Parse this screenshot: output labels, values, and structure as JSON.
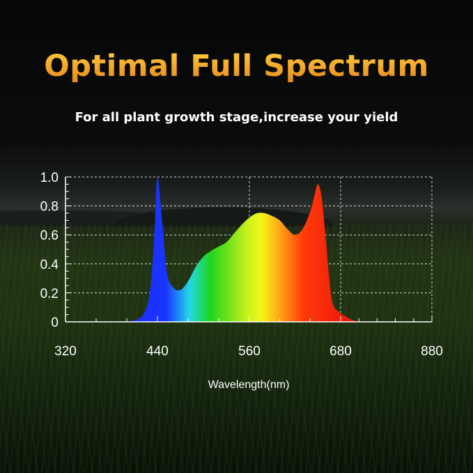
{
  "header": {
    "title": "Optimal Full Spectrum",
    "subtitle": "For all plant growth stage,increase your yield"
  },
  "chart_data": {
    "type": "area",
    "title": "Optimal Full Spectrum",
    "xlabel": "Wavelength(nm)",
    "ylabel": "",
    "xlim": [
      320,
      880
    ],
    "ylim": [
      0,
      1.0
    ],
    "x_ticks": [
      "320",
      "440",
      "560",
      "680",
      "880"
    ],
    "x_tick_values": [
      320,
      440,
      560,
      680,
      880
    ],
    "y_ticks": [
      "0",
      "0.2",
      "0.4",
      "0.6",
      "0.8",
      "1.0"
    ],
    "y_tick_values": [
      0,
      0.2,
      0.4,
      0.6,
      0.8,
      1.0
    ],
    "grid": true,
    "x": [
      400,
      420,
      430,
      436,
      440,
      446,
      452,
      460,
      470,
      480,
      490,
      500,
      510,
      520,
      530,
      540,
      550,
      560,
      570,
      580,
      590,
      600,
      610,
      620,
      630,
      640,
      645,
      650,
      655,
      660,
      665,
      670,
      680,
      690,
      700,
      720
    ],
    "values": [
      0.0,
      0.04,
      0.2,
      0.6,
      1.0,
      0.7,
      0.35,
      0.24,
      0.22,
      0.28,
      0.38,
      0.45,
      0.49,
      0.52,
      0.55,
      0.61,
      0.67,
      0.72,
      0.75,
      0.75,
      0.73,
      0.7,
      0.64,
      0.6,
      0.64,
      0.76,
      0.86,
      0.95,
      0.86,
      0.6,
      0.3,
      0.12,
      0.06,
      0.04,
      0.02,
      0.0
    ],
    "colors": {
      "blue": "#1a2cff",
      "cyan": "#22d8e8",
      "green": "#1fd51f",
      "yellow": "#f5f51a",
      "orange": "#ff9a14",
      "red": "#ff1a0a",
      "title": "#f4a52a"
    }
  }
}
